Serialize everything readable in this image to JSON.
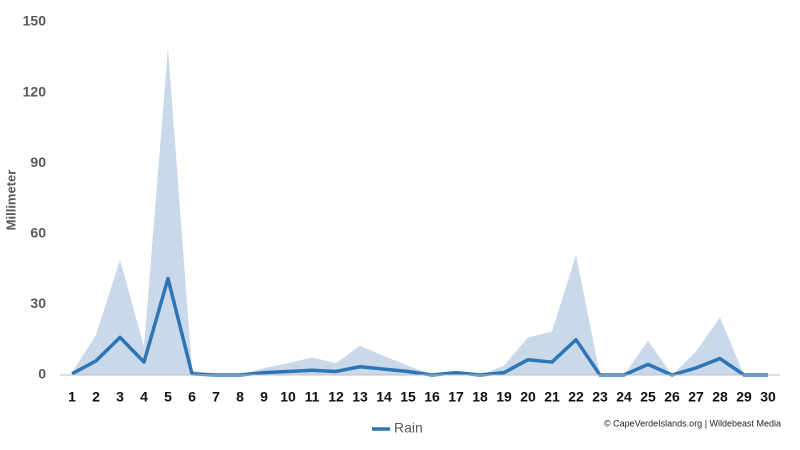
{
  "chart_data": {
    "type": "line",
    "y_label": "Millimeter",
    "credit": "© CapeVerdeIslands.org | Wildebeast Media",
    "categories": [
      "1",
      "2",
      "3",
      "4",
      "5",
      "6",
      "7",
      "8",
      "9",
      "10",
      "11",
      "12",
      "13",
      "14",
      "15",
      "16",
      "17",
      "18",
      "19",
      "20",
      "21",
      "22",
      "23",
      "24",
      "25",
      "26",
      "27",
      "28",
      "29",
      "30"
    ],
    "series": [
      {
        "type": "area",
        "color": "#c9d9ea",
        "values": [
          1,
          17,
          49,
          12,
          139,
          2,
          0,
          0,
          3,
          5,
          7.5,
          5,
          12.5,
          8,
          4,
          0,
          1,
          0,
          4,
          16,
          18.5,
          51,
          0,
          0,
          14.5,
          0,
          10,
          24.5,
          0,
          0
        ]
      },
      {
        "name": "Rain",
        "type": "line",
        "color": "#2e75b6",
        "values": [
          0.5,
          6,
          16,
          5.5,
          41,
          0.5,
          0,
          0,
          1,
          1.5,
          2,
          1.5,
          3.5,
          2.5,
          1.5,
          0,
          1,
          0,
          1,
          6.5,
          5.5,
          15,
          0,
          0,
          4.5,
          0,
          3,
          7,
          0,
          0
        ]
      }
    ],
    "ylim": [
      0,
      150
    ],
    "yticks": [
      0,
      30,
      60,
      90,
      120,
      150
    ],
    "grid": false,
    "legend": "bottom"
  }
}
